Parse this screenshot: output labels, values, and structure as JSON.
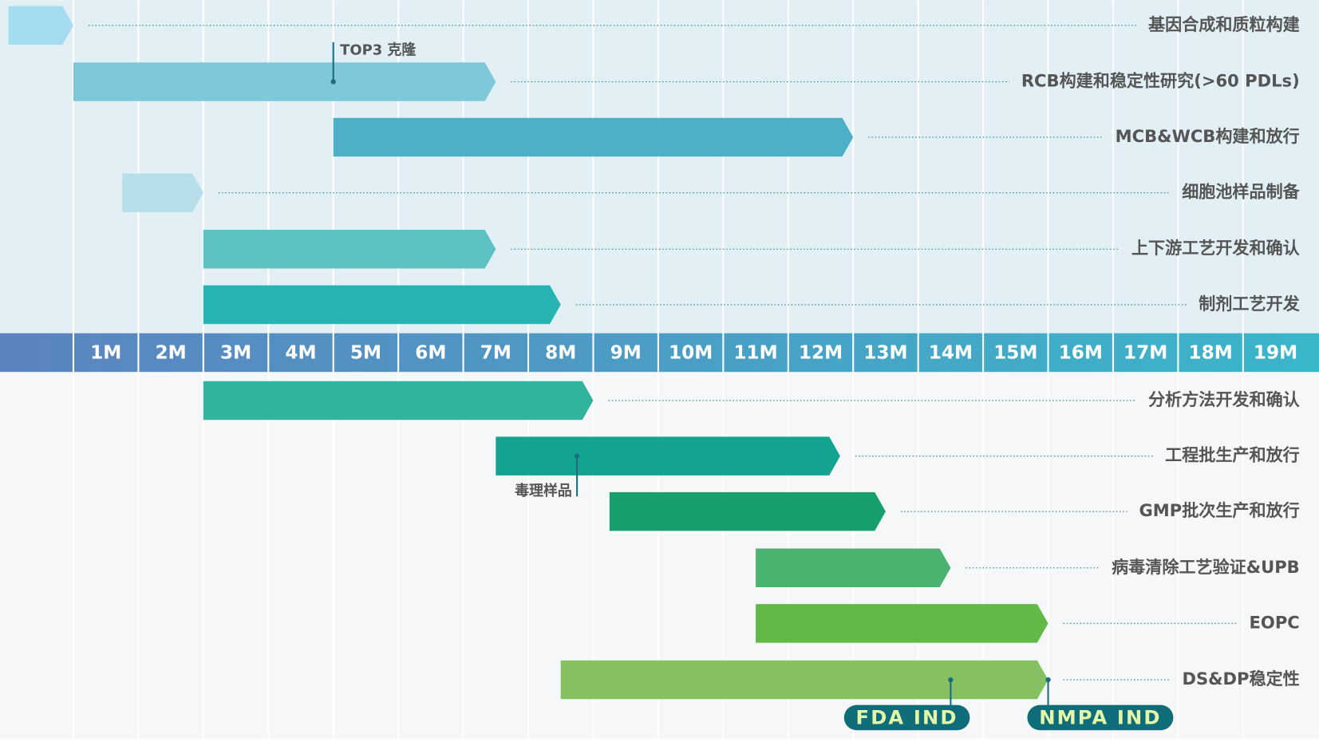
{
  "chart_data": {
    "type": "gantt",
    "xlim": [
      0,
      20
    ],
    "xticks": [
      {
        "value": 1,
        "label": "1M"
      },
      {
        "value": 2,
        "label": "2M"
      },
      {
        "value": 3,
        "label": "3M"
      },
      {
        "value": 4,
        "label": "4M"
      },
      {
        "value": 5,
        "label": "5M"
      },
      {
        "value": 6,
        "label": "6M"
      },
      {
        "value": 7,
        "label": "7M"
      },
      {
        "value": 8,
        "label": "8M"
      },
      {
        "value": 9,
        "label": "9M"
      },
      {
        "value": 10,
        "label": "10M"
      },
      {
        "value": 11,
        "label": "11M"
      },
      {
        "value": 12,
        "label": "12M"
      },
      {
        "value": 13,
        "label": "13M"
      },
      {
        "value": 14,
        "label": "14M"
      },
      {
        "value": 15,
        "label": "15M"
      },
      {
        "value": 16,
        "label": "16M"
      },
      {
        "value": 17,
        "label": "17M"
      },
      {
        "value": 18,
        "label": "18M"
      },
      {
        "value": 19,
        "label": "19M"
      }
    ],
    "grid": true,
    "tasks_above": [
      {
        "name": "基因合成和质粒构建",
        "start": 0,
        "end": 1,
        "color": "#a6dcf2"
      },
      {
        "name": "RCB构建和稳定性研究(>60 PDLs)",
        "start": 1,
        "end": 7.5,
        "color": "#7fc8d9",
        "markers": [
          {
            "label": "TOP3 克隆",
            "x": 5,
            "side": "above",
            "badge": false
          }
        ]
      },
      {
        "name": "MCB&WCB构建和放行",
        "start": 5,
        "end": 13,
        "color": "#4cb0c6"
      },
      {
        "name": "细胞池样品制备",
        "start": 1.75,
        "end": 3,
        "color": "#b6dfea"
      },
      {
        "name": "上下游工艺开发和确认",
        "start": 3,
        "end": 7.5,
        "color": "#5dc1c4"
      },
      {
        "name": "制剂工艺开发",
        "start": 3,
        "end": 8.5,
        "color": "#27b3b1"
      }
    ],
    "tasks_below": [
      {
        "name": "分析方法开发和确认",
        "start": 3,
        "end": 9,
        "color": "#31b39e"
      },
      {
        "name": "工程批生产和放行",
        "start": 7.5,
        "end": 12.8,
        "color": "#13a391",
        "markers": [
          {
            "label": "毒理样品",
            "x": 8.75,
            "side": "below",
            "badge": false
          }
        ]
      },
      {
        "name": "GMP批次生产和放行",
        "start": 9.25,
        "end": 13.5,
        "color": "#17a06e"
      },
      {
        "name": "病毒清除工艺验证&UPB",
        "start": 11.5,
        "end": 14.5,
        "color": "#4ab36f"
      },
      {
        "name": "EOPC",
        "start": 11.5,
        "end": 16,
        "color": "#63b946"
      },
      {
        "name": "DS&DP稳定性",
        "start": 8.5,
        "end": 16,
        "color": "#86c161",
        "markers": [
          {
            "label": "FDA IND",
            "x": 14.5,
            "side": "below",
            "badge": true
          },
          {
            "label": "NMPA IND",
            "x": 16,
            "side": "below",
            "badge": true
          }
        ]
      }
    ]
  }
}
